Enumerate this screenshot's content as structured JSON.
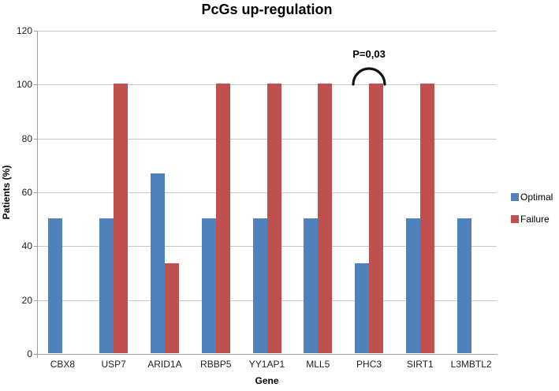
{
  "chart_data": {
    "type": "bar",
    "title": "PcGs up-regulation",
    "xlabel": "Gene",
    "ylabel": "Patients (%)",
    "ylim": [
      0,
      120
    ],
    "yticks": [
      0,
      20,
      40,
      60,
      80,
      100,
      120
    ],
    "grid": true,
    "legend_position": "right",
    "categories": [
      "CBX8",
      "USP7",
      "ARID1A",
      "RBBP5",
      "YY1AP1",
      "MLL5",
      "PHC3",
      "SIRT1",
      "L3MBTL2"
    ],
    "series": [
      {
        "name": "Optimal",
        "color": "#4F81BD",
        "values": [
          50,
          50,
          66.7,
          50,
          50,
          50,
          33.3,
          50,
          50
        ]
      },
      {
        "name": "Failure",
        "color": "#C0504D",
        "values": [
          0,
          100,
          33.3,
          100,
          100,
          100,
          100,
          100,
          0
        ]
      }
    ],
    "annotation": {
      "text": "P=0,03",
      "target_category": "PHC3"
    }
  },
  "style_colors": {
    "gridline": "#c9c9c9",
    "axis": "#9d9d9d",
    "annotation_stroke": "#111111"
  }
}
